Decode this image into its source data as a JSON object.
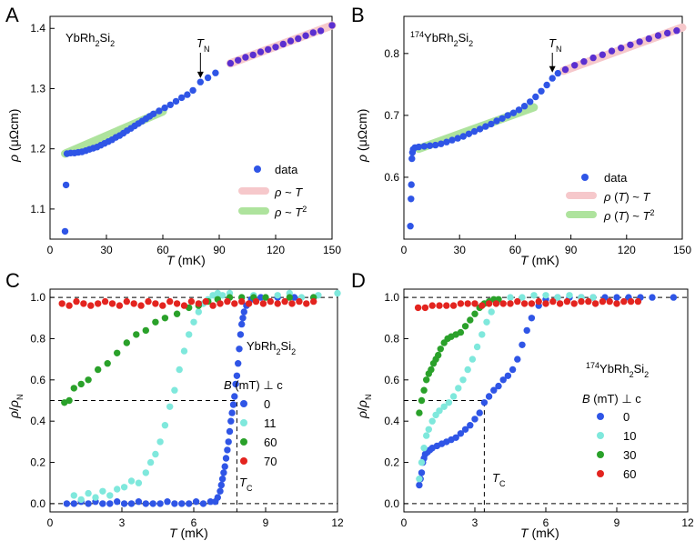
{
  "colors": {
    "blue": "#2f55e6",
    "cyan": "#7fe8dc",
    "green": "#2aa12a",
    "red": "#e3241f",
    "purple": "#5a2fd0",
    "pink": "#f6c8cb",
    "lightgreen": "#aee39d"
  },
  "chart_data": [
    {
      "panel": "A",
      "type": "scatter",
      "title": "YbRh2Si2",
      "xlabel": "T (mK)",
      "ylabel": "ρ (μΩcm)",
      "xlim": [
        0,
        150
      ],
      "ylim": [
        1.05,
        1.42
      ],
      "xticks": [
        0,
        30,
        60,
        90,
        120,
        150
      ],
      "yticks": [
        1.1,
        1.2,
        1.3,
        1.4
      ],
      "annotation": "TN",
      "annotation_x": 80,
      "annotation_y": 1.31,
      "fits": [
        {
          "name": "ρ ~ T",
          "color": "pink",
          "x": [
            96,
            150
          ],
          "y": [
            1.342,
            1.405
          ]
        },
        {
          "name": "ρ ~ T2",
          "color": "lightgreen",
          "x": [
            8,
            60
          ],
          "y": [
            1.192,
            1.262
          ]
        }
      ],
      "series": [
        {
          "name": "data",
          "color": "blue",
          "x": [
            8,
            8.5,
            9,
            11,
            13,
            15,
            17,
            19,
            21,
            23,
            25,
            27,
            29,
            31,
            33,
            35,
            37,
            39,
            41,
            43,
            45,
            47,
            49,
            51,
            53,
            55,
            58,
            61,
            64,
            67,
            70,
            73,
            76,
            80,
            84,
            88
          ],
          "y": [
            1.063,
            1.14,
            1.192,
            1.193,
            1.193,
            1.194,
            1.195,
            1.197,
            1.199,
            1.201,
            1.203,
            1.206,
            1.209,
            1.212,
            1.215,
            1.219,
            1.222,
            1.226,
            1.23,
            1.234,
            1.238,
            1.242,
            1.246,
            1.25,
            1.254,
            1.258,
            1.263,
            1.268,
            1.273,
            1.279,
            1.285,
            1.29,
            1.297,
            1.311,
            1.318,
            1.326
          ]
        },
        {
          "name": "",
          "color": "purple",
          "x": [
            96,
            100,
            104,
            108,
            112,
            116,
            120,
            124,
            128,
            132,
            136,
            140,
            144,
            150
          ],
          "y": [
            1.342,
            1.347,
            1.352,
            1.356,
            1.361,
            1.365,
            1.369,
            1.374,
            1.379,
            1.383,
            1.388,
            1.393,
            1.396,
            1.405
          ]
        }
      ],
      "legend": [
        {
          "label": "data",
          "kind": "dot",
          "color": "blue"
        },
        {
          "label": "ρ ~ T",
          "kind": "band",
          "color": "pink"
        },
        {
          "label": "ρ ~ T2",
          "kind": "band",
          "color": "lightgreen"
        }
      ]
    },
    {
      "panel": "B",
      "type": "scatter",
      "title": "174YbRh2Si2",
      "xlabel": "T (mK)",
      "ylabel": "ρ (μΩcm)",
      "xlim": [
        0,
        150
      ],
      "ylim": [
        0.5,
        0.86
      ],
      "xticks": [
        0,
        30,
        60,
        90,
        120,
        150
      ],
      "yticks": [
        0.6,
        0.7,
        0.8
      ],
      "annotation": "TN",
      "annotation_x": 80,
      "annotation_y": 0.762,
      "fits": [
        {
          "name": "ρ (T) ~ T",
          "color": "pink",
          "x": [
            86,
            150
          ],
          "y": [
            0.772,
            0.842
          ]
        },
        {
          "name": "ρ (T) ~ T2",
          "color": "lightgreen",
          "x": [
            8,
            70
          ],
          "y": [
            0.646,
            0.713
          ]
        }
      ],
      "series": [
        {
          "name": "data",
          "color": "blue",
          "x": [
            3.5,
            3.8,
            4,
            4.3,
            4.6,
            5,
            6,
            8,
            11,
            14,
            17,
            20,
            23,
            26,
            29,
            32,
            35,
            38,
            41,
            44,
            47,
            50,
            53,
            56,
            59,
            62,
            65,
            68,
            71,
            74,
            77,
            80,
            83
          ],
          "y": [
            0.521,
            0.565,
            0.588,
            0.63,
            0.64,
            0.645,
            0.648,
            0.649,
            0.65,
            0.651,
            0.652,
            0.654,
            0.657,
            0.66,
            0.663,
            0.666,
            0.67,
            0.674,
            0.678,
            0.682,
            0.686,
            0.691,
            0.695,
            0.7,
            0.704,
            0.709,
            0.715,
            0.722,
            0.73,
            0.739,
            0.749,
            0.76,
            0.768
          ]
        },
        {
          "name": "",
          "color": "purple",
          "x": [
            87,
            92,
            97,
            102,
            107,
            112,
            117,
            122,
            127,
            132,
            137,
            142,
            147
          ],
          "y": [
            0.774,
            0.781,
            0.787,
            0.793,
            0.798,
            0.804,
            0.809,
            0.814,
            0.819,
            0.824,
            0.829,
            0.833,
            0.837
          ]
        }
      ],
      "legend": [
        {
          "label": "data",
          "kind": "dot",
          "color": "blue"
        },
        {
          "label": "ρ (T) ~ T",
          "kind": "band",
          "color": "pink"
        },
        {
          "label": "ρ (T) ~ T2",
          "kind": "band",
          "color": "lightgreen"
        }
      ]
    },
    {
      "panel": "C",
      "type": "scatter",
      "title": "YbRh2Si2",
      "xlabel": "T (mK)",
      "ylabel": "ρ/ρN",
      "xlim": [
        0,
        12
      ],
      "ylim": [
        -0.04,
        1.04
      ],
      "xticks": [
        0,
        3,
        6,
        9,
        12
      ],
      "yticks": [
        0.0,
        0.2,
        0.4,
        0.6,
        0.8,
        1.0
      ],
      "annotation": "TC",
      "tc_x": 7.8,
      "half_y": 0.5,
      "legend_title": "B (mT) ⊥ c",
      "series": [
        {
          "name": "0",
          "color": "blue",
          "x": [
            0.7,
            1.0,
            1.3,
            1.6,
            1.9,
            2.2,
            2.5,
            2.8,
            3.1,
            3.4,
            3.7,
            4.0,
            4.3,
            4.6,
            4.9,
            5.2,
            5.5,
            5.8,
            6.1,
            6.4,
            6.7,
            6.9,
            7.0,
            7.1,
            7.15,
            7.2,
            7.25,
            7.3,
            7.35,
            7.4,
            7.45,
            7.5,
            7.55,
            7.6,
            7.65,
            7.7,
            7.75,
            7.8,
            7.85,
            7.9,
            7.95,
            8.0,
            8.05,
            8.1,
            8.2,
            8.4,
            8.8,
            9.5,
            10.2,
            11.0
          ],
          "y": [
            0.0,
            0.0,
            0.01,
            0.0,
            0.01,
            0.0,
            0.0,
            0.01,
            0.0,
            0.0,
            0.01,
            0.0,
            0.0,
            0.0,
            0.01,
            0.0,
            0.0,
            0.0,
            0.01,
            0.0,
            0.01,
            0.01,
            0.03,
            0.06,
            0.09,
            0.12,
            0.15,
            0.18,
            0.22,
            0.26,
            0.3,
            0.35,
            0.4,
            0.44,
            0.48,
            0.52,
            0.58,
            0.62,
            0.68,
            0.75,
            0.82,
            0.87,
            0.9,
            0.93,
            0.96,
            0.99,
            1.0,
            1.0,
            1.0,
            1.0
          ]
        },
        {
          "name": "11",
          "color": "cyan",
          "x": [
            1.0,
            1.3,
            1.6,
            1.9,
            2.2,
            2.5,
            2.8,
            3.1,
            3.4,
            3.7,
            4.0,
            4.2,
            4.4,
            4.6,
            4.8,
            5.0,
            5.2,
            5.4,
            5.6,
            5.8,
            6.0,
            6.2,
            6.4,
            6.6,
            6.8,
            7.0,
            7.2,
            7.5,
            8.0,
            8.5,
            9.0,
            9.5,
            10.0,
            10.5,
            11.2,
            12.0
          ],
          "y": [
            0.04,
            0.02,
            0.05,
            0.03,
            0.06,
            0.04,
            0.07,
            0.08,
            0.11,
            0.1,
            0.15,
            0.2,
            0.24,
            0.3,
            0.38,
            0.47,
            0.55,
            0.65,
            0.74,
            0.82,
            0.88,
            0.93,
            0.97,
            0.99,
            1.01,
            1.02,
            1.01,
            1.02,
            1.0,
            1.01,
            1.0,
            1.01,
            1.02,
            1.0,
            1.01,
            1.02
          ]
        },
        {
          "name": "60",
          "color": "green",
          "x": [
            0.6,
            0.8,
            1.0,
            1.3,
            1.6,
            2.0,
            2.4,
            2.8,
            3.2,
            3.6,
            4.0,
            4.4,
            4.8,
            5.3,
            5.8,
            6.2,
            6.6,
            7.0,
            7.5,
            8.0,
            8.5,
            9.0,
            10.0,
            11.0
          ],
          "y": [
            0.49,
            0.5,
            0.56,
            0.58,
            0.6,
            0.65,
            0.68,
            0.73,
            0.78,
            0.82,
            0.84,
            0.88,
            0.9,
            0.92,
            0.95,
            0.96,
            0.98,
            0.99,
            1.0,
            1.0,
            1.0,
            1.0,
            1.0,
            1.0
          ]
        },
        {
          "name": "70",
          "color": "red",
          "x": [
            0.5,
            0.8,
            1.1,
            1.4,
            1.7,
            2.0,
            2.3,
            2.6,
            2.9,
            3.2,
            3.5,
            3.8,
            4.1,
            4.4,
            4.7,
            5.0,
            5.3,
            5.6,
            5.9,
            6.2,
            6.5,
            6.8,
            7.1,
            7.4,
            7.7,
            8.0,
            8.3,
            8.6,
            8.9,
            9.2,
            9.5,
            9.8,
            10.1,
            10.4,
            10.7,
            11.0
          ],
          "y": [
            0.97,
            0.96,
            0.98,
            0.97,
            0.96,
            0.97,
            0.98,
            0.97,
            0.96,
            0.98,
            0.97,
            0.96,
            0.98,
            0.97,
            0.96,
            0.98,
            0.97,
            0.96,
            0.98,
            0.97,
            0.98,
            0.96,
            0.97,
            0.98,
            0.97,
            0.98,
            0.97,
            0.98,
            0.97,
            0.98,
            0.97,
            0.98,
            0.97,
            0.98,
            0.97,
            0.98
          ]
        }
      ]
    },
    {
      "panel": "D",
      "type": "scatter",
      "title": "174YbRh2Si2",
      "xlabel": "T (mK)",
      "ylabel": "ρ/ρN",
      "xlim": [
        0,
        12
      ],
      "ylim": [
        -0.04,
        1.04
      ],
      "xticks": [
        0,
        3,
        6,
        9,
        12
      ],
      "yticks": [
        0.0,
        0.2,
        0.4,
        0.6,
        0.8,
        1.0
      ],
      "annotation": "TC",
      "tc_x": 3.4,
      "half_y": 0.5,
      "legend_title": "B (mT) ⊥ c",
      "series": [
        {
          "name": "0",
          "color": "blue",
          "x": [
            0.65,
            0.7,
            0.75,
            0.8,
            0.85,
            0.9,
            1.0,
            1.1,
            1.2,
            1.4,
            1.6,
            1.8,
            2.0,
            2.2,
            2.4,
            2.6,
            2.8,
            3.0,
            3.2,
            3.4,
            3.6,
            3.8,
            4.0,
            4.2,
            4.4,
            4.6,
            4.8,
            5.0,
            5.2,
            5.4,
            5.7,
            6.0,
            6.5,
            7.0,
            7.5,
            8.0,
            8.5,
            9.0,
            9.5,
            10.0,
            10.5,
            11.4
          ],
          "y": [
            0.09,
            0.12,
            0.15,
            0.2,
            0.22,
            0.24,
            0.25,
            0.26,
            0.27,
            0.28,
            0.29,
            0.3,
            0.31,
            0.32,
            0.34,
            0.36,
            0.38,
            0.41,
            0.44,
            0.49,
            0.52,
            0.55,
            0.57,
            0.6,
            0.62,
            0.65,
            0.7,
            0.77,
            0.84,
            0.9,
            0.96,
            0.99,
            1.0,
            1.0,
            1.0,
            1.0,
            1.0,
            1.0,
            1.0,
            1.0,
            1.0,
            1.0
          ]
        },
        {
          "name": "10",
          "color": "cyan",
          "x": [
            0.65,
            0.75,
            0.85,
            0.95,
            1.05,
            1.2,
            1.35,
            1.5,
            1.7,
            1.9,
            2.1,
            2.3,
            2.5,
            2.7,
            2.9,
            3.1,
            3.3,
            3.5,
            3.7,
            4.0,
            4.5,
            5.0,
            5.5,
            6.0,
            6.5,
            7.0,
            7.5,
            8.0
          ],
          "y": [
            0.12,
            0.2,
            0.27,
            0.33,
            0.36,
            0.4,
            0.43,
            0.45,
            0.47,
            0.49,
            0.52,
            0.56,
            0.6,
            0.65,
            0.7,
            0.76,
            0.82,
            0.88,
            0.93,
            0.98,
            1.0,
            1.0,
            1.01,
            1.01,
            1.0,
            1.01,
            1.0,
            1.0
          ]
        },
        {
          "name": "30",
          "color": "green",
          "x": [
            0.65,
            0.75,
            0.85,
            0.95,
            1.05,
            1.15,
            1.25,
            1.35,
            1.45,
            1.55,
            1.7,
            1.85,
            2.0,
            2.2,
            2.4,
            2.6,
            2.8,
            3.0,
            3.2,
            3.4,
            3.6,
            3.8,
            4.0
          ],
          "y": [
            0.44,
            0.5,
            0.55,
            0.6,
            0.63,
            0.65,
            0.68,
            0.7,
            0.72,
            0.75,
            0.78,
            0.8,
            0.81,
            0.82,
            0.83,
            0.86,
            0.89,
            0.92,
            0.95,
            0.97,
            0.98,
            0.99,
            0.99
          ]
        },
        {
          "name": "60",
          "color": "red",
          "x": [
            0.6,
            0.9,
            1.2,
            1.5,
            1.8,
            2.1,
            2.4,
            2.7,
            3.0,
            3.3,
            3.6,
            3.9,
            4.2,
            4.5,
            4.8,
            5.1,
            5.4,
            5.7,
            6.0,
            6.3,
            6.6,
            6.9,
            7.2,
            7.5,
            7.8,
            8.1,
            8.4,
            8.7,
            9.0,
            9.3,
            9.6,
            9.9
          ],
          "y": [
            0.95,
            0.95,
            0.96,
            0.96,
            0.96,
            0.96,
            0.97,
            0.97,
            0.97,
            0.96,
            0.97,
            0.97,
            0.97,
            0.97,
            0.98,
            0.97,
            0.97,
            0.98,
            0.97,
            0.98,
            0.97,
            0.98,
            0.97,
            0.98,
            0.98,
            0.97,
            0.98,
            0.98,
            0.97,
            0.98,
            0.98,
            0.98
          ]
        }
      ]
    }
  ]
}
